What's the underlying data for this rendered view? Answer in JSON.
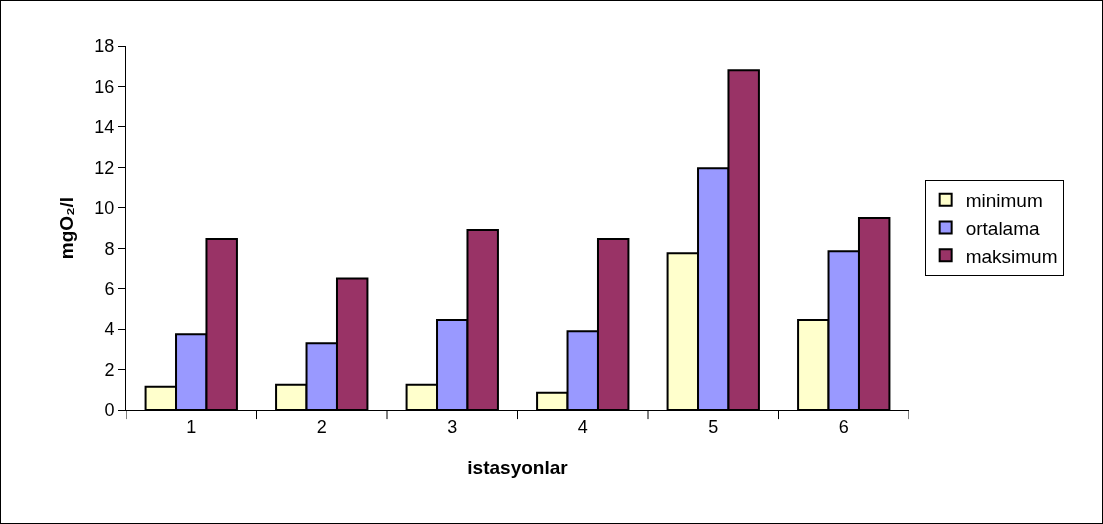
{
  "chart_data": {
    "type": "bar",
    "xlabel": "istasyonlar",
    "ylabel": "mgO₂/l",
    "categories": [
      "1",
      "2",
      "3",
      "4",
      "5",
      "6"
    ],
    "series": [
      {
        "name": "minimum",
        "color": "#ffffcc",
        "values": [
          1.15,
          1.25,
          1.25,
          0.85,
          7.75,
          4.45
        ]
      },
      {
        "name": "ortalama",
        "color": "#9999ff",
        "values": [
          3.75,
          3.3,
          4.45,
          3.9,
          11.95,
          7.85
        ]
      },
      {
        "name": "maksimum",
        "color": "#993366",
        "values": [
          8.45,
          6.5,
          8.9,
          8.45,
          16.8,
          9.5
        ]
      }
    ],
    "ylim": [
      0,
      18
    ],
    "yticks": [
      0,
      2,
      4,
      6,
      8,
      10,
      12,
      14,
      16,
      18
    ],
    "grid": false,
    "legend": "right"
  }
}
